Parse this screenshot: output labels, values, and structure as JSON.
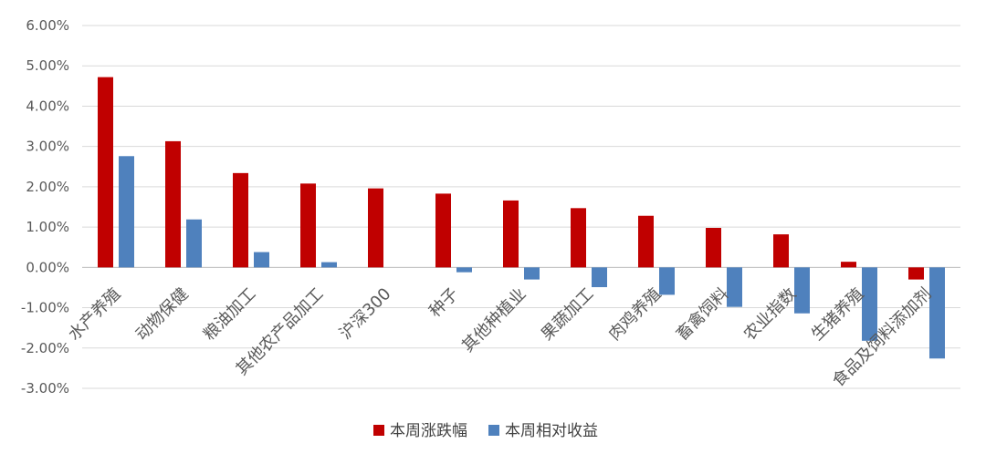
{
  "chart_data": {
    "type": "bar",
    "categories": [
      "水产养殖",
      "动物保健",
      "粮油加工",
      "其他农产品加工",
      "沪深300",
      "种子",
      "其他种植业",
      "果蔬加工",
      "肉鸡养殖",
      "畜禽饲料",
      "农业指数",
      "生猪养殖",
      "食品及饲料添加剂"
    ],
    "series": [
      {
        "name": "本周涨跌幅",
        "color": "#c00000",
        "values": [
          4.72,
          3.13,
          2.34,
          2.08,
          1.96,
          1.83,
          1.66,
          1.47,
          1.28,
          0.98,
          0.82,
          0.14,
          -0.3
        ]
      },
      {
        "name": "本周相对收益",
        "color": "#4f81bd",
        "values": [
          2.76,
          1.19,
          0.38,
          0.13,
          0.0,
          -0.12,
          -0.3,
          -0.49,
          -0.68,
          -0.98,
          -1.14,
          -1.82,
          -2.26
        ]
      }
    ],
    "ylim": [
      -3,
      6
    ],
    "yticks": [
      "6.00%",
      "5.00%",
      "4.00%",
      "3.00%",
      "2.00%",
      "1.00%",
      "0.00%",
      "-1.00%",
      "-2.00%",
      "-3.00%"
    ],
    "grid": true,
    "legend_position": "bottom"
  }
}
